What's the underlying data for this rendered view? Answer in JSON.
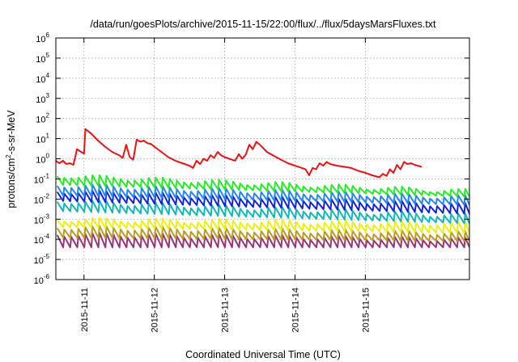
{
  "chart_data": {
    "type": "line",
    "title": "/data/run/goesPlots/archive/2015-11-15/22:00/flux/../flux/5daysMarsFluxes.txt",
    "xlabel": "Coordinated Universal Time (UTC)",
    "ylabel": "protons/cm2-s-sr-MeV",
    "ylabel_parts": {
      "pre": "protons/cm",
      "sup": "2",
      "post": "-s-sr-MeV"
    },
    "yscale": "log",
    "ylim_exp": [
      -6,
      6
    ],
    "y_ticks": [
      {
        "base": "10",
        "exp": "-6"
      },
      {
        "base": "10",
        "exp": "-5"
      },
      {
        "base": "10",
        "exp": "-4"
      },
      {
        "base": "10",
        "exp": "-3"
      },
      {
        "base": "10",
        "exp": "-2"
      },
      {
        "base": "10",
        "exp": "-1"
      },
      {
        "base": "10",
        "exp": "0"
      },
      {
        "base": "10",
        "exp": "1"
      },
      {
        "base": "10",
        "exp": "2"
      },
      {
        "base": "10",
        "exp": "3"
      },
      {
        "base": "10",
        "exp": "4"
      },
      {
        "base": "10",
        "exp": "5"
      },
      {
        "base": "10",
        "exp": "6"
      }
    ],
    "x_range_days": [
      -0.4,
      5.48
    ],
    "x_ticks": [
      {
        "label": "2015-11-11",
        "day": 0
      },
      {
        "label": "2015-11-12",
        "day": 1
      },
      {
        "label": "2015-11-13",
        "day": 2
      },
      {
        "label": "2015-11-14",
        "day": 3
      },
      {
        "label": "2015-11-15",
        "day": 4
      }
    ],
    "grid": true,
    "series": [
      {
        "color": "#ee1111",
        "points": [
          [
            -0.4,
            0.8
          ],
          [
            -0.35,
            0.6
          ],
          [
            -0.3,
            0.8
          ],
          [
            -0.25,
            0.55
          ],
          [
            -0.2,
            0.6
          ],
          [
            -0.15,
            0.5
          ],
          [
            -0.1,
            3.0
          ],
          [
            -0.05,
            2.3
          ],
          [
            0.0,
            1.8
          ],
          [
            0.02,
            30
          ],
          [
            0.1,
            18
          ],
          [
            0.2,
            8
          ],
          [
            0.3,
            4
          ],
          [
            0.4,
            2.2
          ],
          [
            0.5,
            1.5
          ],
          [
            0.55,
            1.1
          ],
          [
            0.6,
            5.0
          ],
          [
            0.65,
            1.2
          ],
          [
            0.7,
            0.9
          ],
          [
            0.75,
            9.0
          ],
          [
            0.8,
            7.0
          ],
          [
            0.85,
            8.0
          ],
          [
            0.9,
            6.0
          ],
          [
            0.95,
            5.5
          ],
          [
            1.0,
            4.0
          ],
          [
            1.1,
            2.2
          ],
          [
            1.2,
            1.2
          ],
          [
            1.3,
            0.8
          ],
          [
            1.4,
            0.6
          ],
          [
            1.5,
            0.45
          ],
          [
            1.55,
            0.35
          ],
          [
            1.6,
            0.8
          ],
          [
            1.65,
            0.55
          ],
          [
            1.7,
            1.0
          ],
          [
            1.75,
            0.8
          ],
          [
            1.8,
            1.5
          ],
          [
            1.85,
            1.1
          ],
          [
            1.9,
            2.2
          ],
          [
            1.95,
            1.5
          ],
          [
            2.0,
            1.2
          ],
          [
            2.1,
            0.9
          ],
          [
            2.15,
            0.8
          ],
          [
            2.2,
            1.7
          ],
          [
            2.25,
            1.0
          ],
          [
            2.3,
            1.6
          ],
          [
            2.35,
            5.0
          ],
          [
            2.4,
            3.0
          ],
          [
            2.45,
            7.0
          ],
          [
            2.5,
            5.0
          ],
          [
            2.6,
            2.2
          ],
          [
            2.7,
            1.4
          ],
          [
            2.8,
            0.9
          ],
          [
            2.9,
            0.6
          ],
          [
            3.0,
            0.45
          ],
          [
            3.1,
            0.35
          ],
          [
            3.15,
            0.3
          ],
          [
            3.2,
            0.15
          ],
          [
            3.25,
            0.35
          ],
          [
            3.3,
            0.3
          ],
          [
            3.35,
            0.6
          ],
          [
            3.4,
            0.45
          ],
          [
            3.45,
            0.7
          ],
          [
            3.5,
            0.55
          ],
          [
            3.6,
            0.45
          ],
          [
            3.7,
            0.4
          ],
          [
            3.8,
            0.35
          ],
          [
            3.9,
            0.25
          ],
          [
            4.0,
            0.2
          ],
          [
            4.1,
            0.15
          ],
          [
            4.2,
            0.12
          ],
          [
            4.25,
            0.18
          ],
          [
            4.3,
            0.14
          ],
          [
            4.35,
            0.3
          ],
          [
            4.4,
            0.2
          ],
          [
            4.45,
            0.5
          ],
          [
            4.5,
            0.3
          ],
          [
            4.55,
            0.7
          ],
          [
            4.6,
            0.55
          ],
          [
            4.65,
            0.6
          ],
          [
            4.7,
            0.5
          ],
          [
            4.8,
            0.4
          ]
        ]
      }
    ],
    "bands": [
      {
        "color": "#22ee22",
        "start_peak": 0.15,
        "start_trough": 0.05,
        "end_peak": 0.025,
        "end_trough": 0.013
      },
      {
        "color": "#2288ee",
        "start_peak": 0.05,
        "start_trough": 0.015,
        "end_peak": 0.012,
        "end_trough": 0.005
      },
      {
        "color": "#1122dd",
        "start_peak": 0.025,
        "start_trough": 0.008,
        "end_peak": 0.005,
        "end_trough": 0.0018
      },
      {
        "color": "#11b8b8",
        "start_peak": 0.008,
        "start_trough": 0.0025,
        "end_peak": 0.0015,
        "end_trough": 0.0006
      },
      {
        "color": "#eeee11",
        "start_peak": 0.001,
        "start_trough": 0.0004,
        "end_peak": 0.0006,
        "end_trough": 0.0002
      },
      {
        "color": "#bb9922",
        "start_peak": 0.0004,
        "start_trough": 0.00012,
        "end_peak": 0.0002,
        "end_trough": 8e-05
      },
      {
        "color": "#993377",
        "start_peak": 0.00018,
        "start_trough": 4e-05,
        "end_peak": 0.0001,
        "end_trough": 4e-05
      }
    ]
  }
}
